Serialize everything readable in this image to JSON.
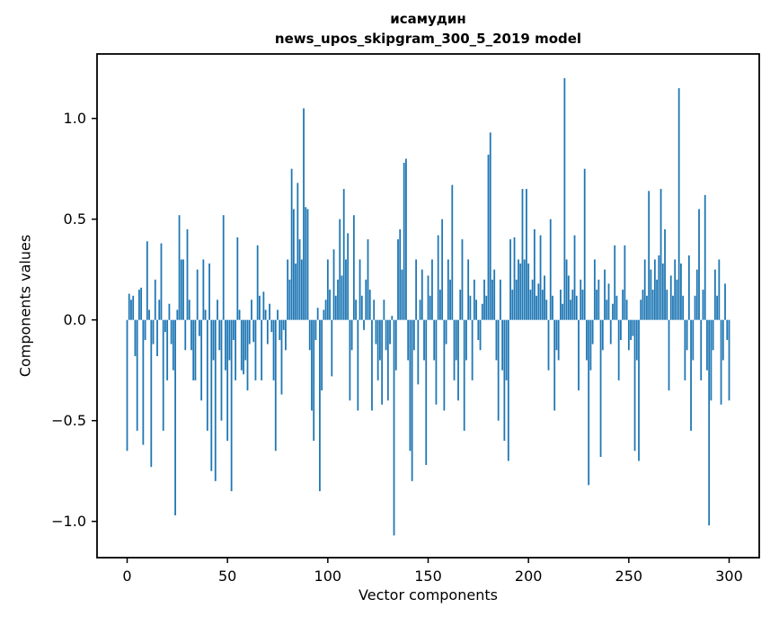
{
  "figure": {
    "title_line1": "исамудин",
    "title_line2": "news_upos_skipgram_300_5_2019 model",
    "xlabel": "Vector components",
    "ylabel": "Components values"
  },
  "chart_data": {
    "type": "bar",
    "title": "исамудин — news_upos_skipgram_300_5_2019 model",
    "xlabel": "Vector components",
    "ylabel": "Components values",
    "bar_color": "#1f77b4",
    "spine_color": "#000000",
    "grid": false,
    "legend": false,
    "xlim": [
      -15,
      315
    ],
    "ylim": [
      -1.18,
      1.32
    ],
    "xticks": [
      0,
      50,
      100,
      150,
      200,
      250,
      300
    ],
    "xtick_labels": [
      "0",
      "50",
      "100",
      "150",
      "200",
      "250",
      "300"
    ],
    "yticks": [
      -1.0,
      -0.5,
      0.0,
      0.5,
      1.0
    ],
    "ytick_labels": [
      "−1.0",
      "−0.5",
      "0.0",
      "0.5",
      "1.0"
    ],
    "x_start": 0,
    "values": [
      -0.65,
      0.13,
      0.1,
      0.12,
      -0.18,
      -0.55,
      0.15,
      0.16,
      -0.62,
      -0.1,
      0.39,
      0.05,
      -0.73,
      -0.12,
      0.2,
      -0.18,
      0.1,
      0.38,
      -0.55,
      -0.06,
      -0.3,
      0.08,
      -0.12,
      -0.25,
      -0.97,
      0.05,
      0.52,
      0.3,
      0.3,
      -0.15,
      0.45,
      0.1,
      -0.15,
      -0.3,
      -0.3,
      0.25,
      -0.08,
      -0.4,
      0.3,
      0.05,
      -0.55,
      0.28,
      -0.75,
      -0.2,
      -0.8,
      0.1,
      -0.15,
      -0.5,
      0.52,
      -0.25,
      -0.6,
      -0.2,
      -0.85,
      -0.1,
      -0.3,
      0.41,
      0.05,
      -0.25,
      -0.27,
      -0.2,
      -0.35,
      -0.12,
      0.1,
      -0.11,
      -0.3,
      0.37,
      0.12,
      -0.3,
      0.14,
      0.05,
      -0.12,
      0.08,
      -0.06,
      -0.3,
      -0.65,
      0.05,
      -0.1,
      -0.37,
      -0.05,
      -0.15,
      0.3,
      0.2,
      0.75,
      0.55,
      0.28,
      0.68,
      0.4,
      0.3,
      1.05,
      0.56,
      0.55,
      -0.15,
      -0.45,
      -0.6,
      -0.1,
      0.06,
      -0.85,
      -0.35,
      0.05,
      0.1,
      0.3,
      0.15,
      -0.28,
      0.35,
      0.12,
      0.2,
      0.5,
      0.22,
      0.65,
      0.3,
      0.43,
      -0.4,
      -0.15,
      0.52,
      0.1,
      -0.45,
      0.3,
      0.12,
      -0.05,
      0.2,
      0.4,
      0.15,
      -0.45,
      0.1,
      -0.12,
      -0.3,
      -0.2,
      -0.42,
      0.1,
      -0.15,
      -0.4,
      -0.12,
      0.02,
      -1.07,
      -0.25,
      0.4,
      0.45,
      0.25,
      0.78,
      0.8,
      -0.2,
      -0.65,
      -0.8,
      -0.15,
      0.3,
      -0.32,
      0.1,
      0.25,
      -0.2,
      -0.72,
      0.22,
      0.12,
      0.3,
      -0.2,
      -0.42,
      0.42,
      0.15,
      0.5,
      -0.45,
      -0.12,
      0.3,
      0.2,
      0.67,
      -0.3,
      -0.2,
      -0.4,
      0.15,
      0.4,
      -0.55,
      -0.2,
      0.3,
      0.12,
      -0.3,
      0.2,
      0.1,
      -0.1,
      -0.15,
      0.08,
      0.2,
      0.12,
      0.82,
      0.93,
      0.2,
      0.25,
      -0.2,
      -0.5,
      0.2,
      -0.25,
      -0.6,
      -0.3,
      -0.7,
      0.4,
      0.15,
      0.41,
      0.2,
      0.3,
      0.28,
      0.65,
      0.3,
      0.65,
      0.28,
      0.15,
      0.2,
      0.45,
      0.12,
      0.18,
      0.42,
      0.15,
      0.22,
      0.1,
      -0.25,
      0.5,
      0.12,
      -0.45,
      -0.15,
      -0.2,
      0.15,
      0.08,
      1.2,
      0.3,
      0.22,
      0.1,
      0.15,
      0.42,
      0.12,
      -0.35,
      0.2,
      0.15,
      0.75,
      -0.2,
      -0.82,
      -0.25,
      -0.12,
      0.3,
      0.15,
      0.2,
      -0.68,
      -0.15,
      0.25,
      0.1,
      0.18,
      -0.12,
      0.08,
      0.37,
      0.12,
      -0.3,
      -0.1,
      0.15,
      0.37,
      0.1,
      -0.15,
      -0.1,
      -0.08,
      -0.65,
      -0.2,
      -0.7,
      0.1,
      0.15,
      0.3,
      0.12,
      0.64,
      0.25,
      0.15,
      0.3,
      0.2,
      0.32,
      0.65,
      0.28,
      0.45,
      0.15,
      -0.35,
      0.22,
      0.12,
      0.3,
      0.2,
      1.15,
      0.28,
      0.12,
      -0.3,
      -0.15,
      0.32,
      -0.55,
      -0.2,
      0.12,
      0.25,
      0.55,
      -0.3,
      0.15,
      0.62,
      -0.25,
      -1.02,
      -0.4,
      -0.15,
      0.25,
      0.12,
      0.3,
      -0.42,
      -0.2,
      0.18,
      -0.1,
      -0.4
    ]
  }
}
